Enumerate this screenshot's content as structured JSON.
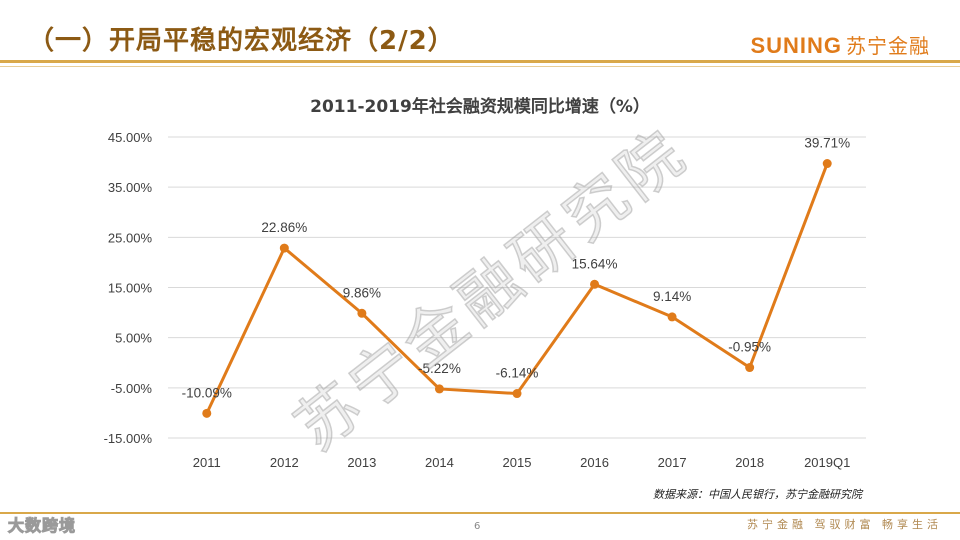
{
  "header": {
    "title": "（一）开局平稳的宏观经济（2/2）",
    "logo_en": "SUNING",
    "logo_cn": "苏宁金融"
  },
  "footer": {
    "source": "数据来源：中国人民银行，苏宁金融研究院",
    "page": "6",
    "slogan": "苏宁金融 驾驭财富 畅享生活",
    "corner_mark": "大数跨境"
  },
  "watermark": "苏宁金融研究院",
  "colors": {
    "line": "#e07b1a",
    "axis_text": "#404040",
    "grid": "#d9d9d9"
  },
  "chart_data": {
    "type": "line",
    "title": "2011-2019年社会融资规模同比增速（%）",
    "categories": [
      "2011",
      "2012",
      "2013",
      "2014",
      "2015",
      "2016",
      "2017",
      "2018",
      "2019Q1"
    ],
    "series": [
      {
        "values": [
          -10.09,
          22.86,
          9.86,
          -5.22,
          -6.14,
          15.64,
          9.14,
          -0.95,
          39.71
        ]
      }
    ],
    "data_labels": [
      "-10.09%",
      "22.86%",
      "9.86%",
      "-5.22%",
      "-6.14%",
      "15.64%",
      "9.14%",
      "-0.95%",
      "39.71%"
    ],
    "y_ticks": [
      -15,
      -5,
      5,
      15,
      25,
      35,
      45
    ],
    "y_tick_labels": [
      "-15.00%",
      "-5.00%",
      "5.00%",
      "15.00%",
      "25.00%",
      "35.00%",
      "45.00%"
    ],
    "ylim": [
      -15,
      45
    ],
    "grid": true,
    "legend": "none"
  }
}
